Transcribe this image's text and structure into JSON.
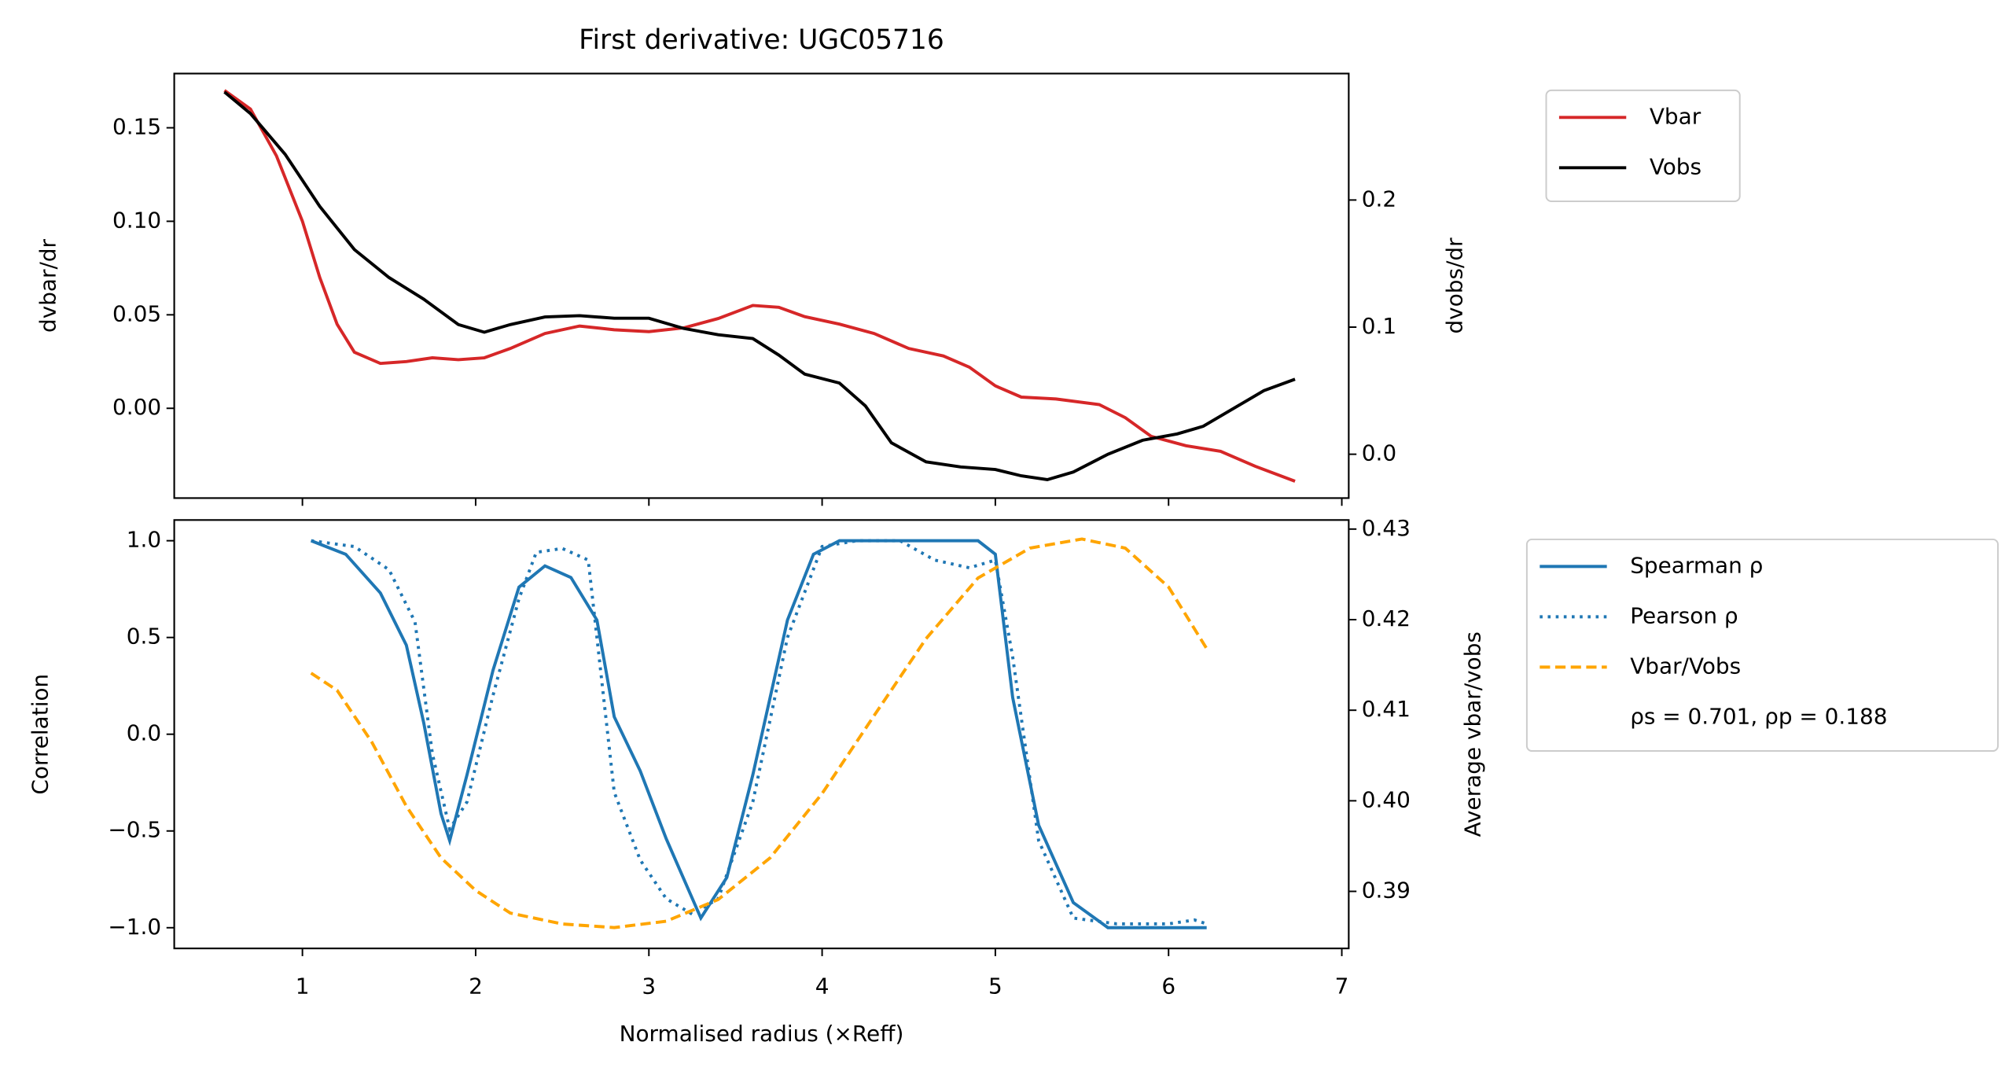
{
  "chart_data": [
    {
      "type": "line",
      "title": "First derivative: UGC05716",
      "y_label": "dvbar/dr",
      "y2_label": "dvobs/dr",
      "xlim": [
        0.26,
        7.04
      ],
      "ylim": [
        -0.048,
        0.179
      ],
      "y2lim": [
        -0.0345,
        0.2995
      ],
      "yticks": [
        {
          "value": 0.0,
          "label": "0.00"
        },
        0.05,
        {
          "value": 0.1,
          "label": "0.10"
        },
        0.15
      ],
      "y2ticks": [
        {
          "value": 0.0,
          "label": "0.0"
        },
        0.1,
        0.2
      ],
      "series": [
        {
          "name": "Vbar",
          "color": "#d62728",
          "linestyle": "solid",
          "axis": "y",
          "x": [
            0.55,
            0.7,
            0.85,
            1.0,
            1.1,
            1.2,
            1.3,
            1.45,
            1.6,
            1.75,
            1.9,
            2.05,
            2.2,
            2.4,
            2.6,
            2.8,
            3.0,
            3.2,
            3.4,
            3.6,
            3.75,
            3.9,
            4.1,
            4.3,
            4.5,
            4.7,
            4.85,
            5.0,
            5.15,
            5.35,
            5.6,
            5.75,
            5.9,
            6.1,
            6.3,
            6.5,
            6.73
          ],
          "values": [
            0.17,
            0.16,
            0.135,
            0.1,
            0.07,
            0.045,
            0.03,
            0.024,
            0.025,
            0.027,
            0.026,
            0.027,
            0.032,
            0.04,
            0.044,
            0.042,
            0.041,
            0.043,
            0.048,
            0.055,
            0.054,
            0.049,
            0.045,
            0.04,
            0.032,
            0.028,
            0.022,
            0.012,
            0.006,
            0.005,
            0.002,
            -0.005,
            -0.015,
            -0.02,
            -0.023,
            -0.031,
            -0.039
          ]
        },
        {
          "name": "Vobs",
          "color": "#000000",
          "linestyle": "solid",
          "axis": "y2",
          "x": [
            0.55,
            0.7,
            0.9,
            1.1,
            1.3,
            1.5,
            1.7,
            1.9,
            2.05,
            2.2,
            2.4,
            2.6,
            2.8,
            3.0,
            3.2,
            3.4,
            3.6,
            3.75,
            3.9,
            4.1,
            4.25,
            4.4,
            4.6,
            4.8,
            5.0,
            5.15,
            5.3,
            5.45,
            5.65,
            5.85,
            6.05,
            6.2,
            6.4,
            6.55,
            6.73
          ],
          "values": [
            0.285,
            0.268,
            0.236,
            0.195,
            0.161,
            0.139,
            0.122,
            0.102,
            0.096,
            0.102,
            0.108,
            0.109,
            0.107,
            0.107,
            0.099,
            0.094,
            0.091,
            0.078,
            0.063,
            0.056,
            0.038,
            0.009,
            -0.006,
            -0.01,
            -0.012,
            -0.017,
            -0.02,
            -0.014,
            0.0,
            0.011,
            0.016,
            0.022,
            0.038,
            0.05,
            0.059
          ]
        }
      ]
    },
    {
      "type": "line",
      "x_label": "Normalised radius (×Reff)",
      "y_label": "Correlation",
      "y2_label": "Average vbar/vobs",
      "legend_note": "ρs = 0.701, ρp = 0.188",
      "xlim": [
        0.26,
        7.04
      ],
      "xticks": [
        1,
        2,
        3,
        4,
        5,
        6,
        7
      ],
      "ylim": [
        -1.107,
        1.107
      ],
      "y2lim": [
        0.3837,
        0.431
      ],
      "yticks": [
        {
          "value": -1.0,
          "label": "−1.0"
        },
        {
          "value": -0.5,
          "label": "−0.5"
        },
        {
          "value": 0.0,
          "label": "0.0"
        },
        0.5,
        {
          "value": 1.0,
          "label": "1.0"
        }
      ],
      "y2ticks": [
        0.39,
        {
          "value": 0.4,
          "label": "0.40"
        },
        0.41,
        0.42,
        0.43
      ],
      "series": [
        {
          "name": "Spearman ρ",
          "color": "#1f77b4",
          "linestyle": "solid",
          "axis": "y",
          "x": [
            1.05,
            1.25,
            1.45,
            1.6,
            1.7,
            1.8,
            1.85,
            1.95,
            2.1,
            2.25,
            2.4,
            2.55,
            2.7,
            2.8,
            2.95,
            3.1,
            3.3,
            3.45,
            3.6,
            3.8,
            3.95,
            4.1,
            4.5,
            4.9,
            5.0,
            5.1,
            5.25,
            5.45,
            5.65,
            6.22
          ],
          "values": [
            1.0,
            0.93,
            0.73,
            0.46,
            0.06,
            -0.41,
            -0.55,
            -0.21,
            0.33,
            0.76,
            0.87,
            0.81,
            0.59,
            0.09,
            -0.19,
            -0.54,
            -0.95,
            -0.74,
            -0.21,
            0.59,
            0.93,
            1.0,
            1.0,
            1.0,
            0.93,
            0.19,
            -0.47,
            -0.87,
            -1.0,
            -1.0
          ]
        },
        {
          "name": "Pearson ρ",
          "color": "#1f77b4",
          "linestyle": "dotted",
          "axis": "y",
          "x": [
            1.05,
            1.3,
            1.5,
            1.65,
            1.75,
            1.85,
            1.95,
            2.1,
            2.25,
            2.35,
            2.5,
            2.65,
            2.7,
            2.8,
            2.95,
            3.1,
            3.25,
            3.4,
            3.6,
            3.8,
            4.0,
            4.2,
            4.45,
            4.65,
            4.85,
            5.0,
            5.1,
            5.25,
            5.45,
            5.7,
            6.0,
            6.15,
            6.22
          ],
          "values": [
            1.0,
            0.97,
            0.85,
            0.58,
            -0.1,
            -0.49,
            -0.35,
            0.2,
            0.7,
            0.94,
            0.96,
            0.9,
            0.5,
            -0.3,
            -0.65,
            -0.85,
            -0.93,
            -0.85,
            -0.35,
            0.5,
            0.97,
            1.0,
            1.0,
            0.9,
            0.86,
            0.9,
            0.4,
            -0.55,
            -0.95,
            -0.98,
            -0.98,
            -0.96,
            -0.98
          ]
        },
        {
          "name": "Vbar/Vobs",
          "color": "#ffa500",
          "linestyle": "dashed",
          "axis": "y2",
          "x": [
            1.05,
            1.2,
            1.4,
            1.6,
            1.8,
            2.0,
            2.2,
            2.5,
            2.8,
            3.1,
            3.4,
            3.7,
            4.0,
            4.3,
            4.6,
            4.9,
            5.2,
            5.5,
            5.75,
            6.0,
            6.22
          ],
          "values": [
            0.4141,
            0.4122,
            0.4065,
            0.3994,
            0.3937,
            0.3901,
            0.3876,
            0.3864,
            0.386,
            0.3867,
            0.3891,
            0.3937,
            0.4008,
            0.4094,
            0.4179,
            0.4246,
            0.4279,
            0.4289,
            0.4279,
            0.4236,
            0.4168
          ]
        }
      ]
    }
  ]
}
